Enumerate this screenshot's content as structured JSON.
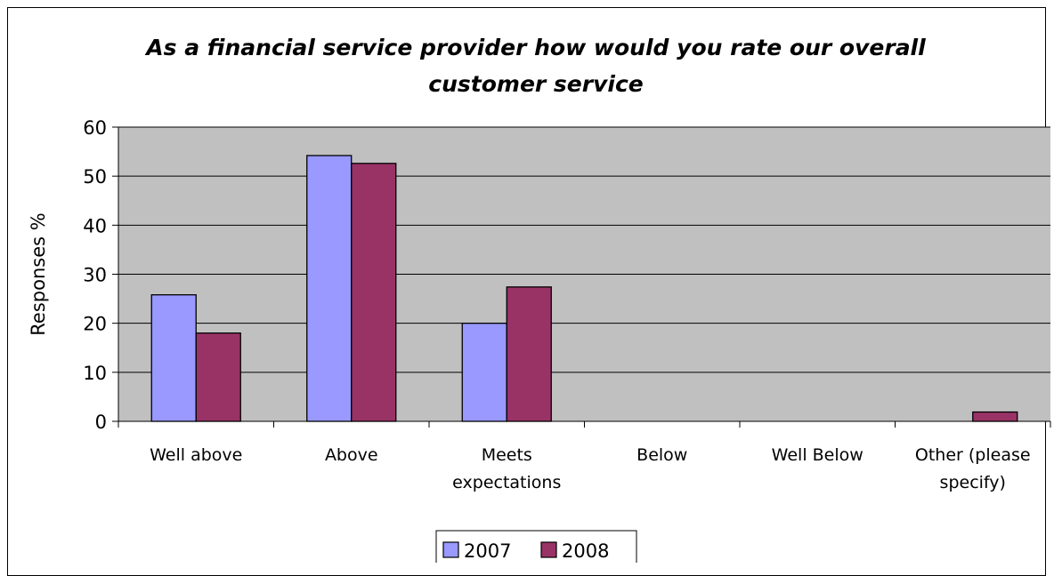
{
  "chart_data": {
    "type": "bar",
    "title_lines": [
      "As a financial service provider how would you rate our overall",
      "customer service"
    ],
    "xlabel": "",
    "ylabel": "Responses %",
    "ylim": [
      0,
      60
    ],
    "yticks": [
      "0",
      "10",
      "20",
      "30",
      "40",
      "50",
      "60"
    ],
    "categories": [
      [
        "Well above"
      ],
      [
        "Above"
      ],
      [
        "Meets",
        "expectations"
      ],
      [
        "Below"
      ],
      [
        "Well Below"
      ],
      [
        "Other (please",
        "specify)"
      ]
    ],
    "series": [
      {
        "name": "2007",
        "color": "#9999ff",
        "values": [
          25.8,
          54.2,
          20.0,
          0,
          0,
          0
        ]
      },
      {
        "name": "2008",
        "color": "#993366",
        "values": [
          18.0,
          52.6,
          27.4,
          0,
          0,
          1.9
        ]
      }
    ],
    "grid": true,
    "plot_background": "#c0c0c0",
    "legend_position": "bottom"
  }
}
